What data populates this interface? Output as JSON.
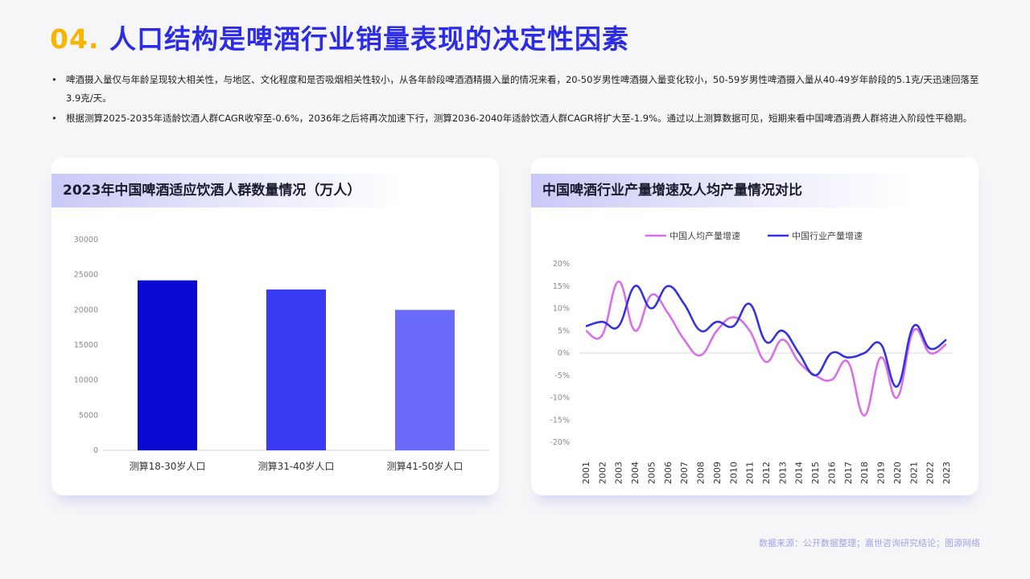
{
  "header": {
    "number": "04.",
    "title": "人口结构是啤酒行业销量表现的决定性因素"
  },
  "bullets": [
    "啤酒摄入量仅与年龄呈现较大相关性，与地区、文化程度和是否吸烟相关性较小，从各年龄段啤酒酒精摄入量的情况来看，20-50岁男性啤酒摄入量变化较小，50-59岁男性啤酒摄入量从40-49岁年龄段的5.1克/天迅速回落至3.9克/天。",
    "根据测算2025-2035年适龄饮酒人群CAGR收窄至-0.6%，2036年之后将再次加速下行，测算2036-2040年适龄饮酒人群CAGR将扩大至-1.9%。通过以上测算数据可见，短期来看中国啤酒消费人群将进入阶段性平稳期。"
  ],
  "source": "数据来源：公开数据整理；嘉世咨询研究结论；图源网络",
  "chart_data": [
    {
      "type": "bar",
      "title": "2023年中国啤酒适应饮酒人群数量情况（万人）",
      "categories": [
        "测算18-30岁人口",
        "测算31-40岁人口",
        "测算41-50岁人口"
      ],
      "values": [
        24200,
        22900,
        20000
      ],
      "colors": [
        "#0a0ad2",
        "#3a3af5",
        "#6a6afa"
      ],
      "ylim": [
        0,
        30000
      ],
      "yticks": [
        "0",
        "5000",
        "10000",
        "15000",
        "20000",
        "25000",
        "30000"
      ],
      "grid": false
    },
    {
      "type": "line",
      "title": "中国啤酒行业产量增速及人均产量情况对比",
      "x": [
        "2001",
        "2002",
        "2003",
        "2004",
        "2005",
        "2006",
        "2007",
        "2008",
        "2009",
        "2010",
        "2011",
        "2012",
        "2013",
        "2014",
        "2015",
        "2016",
        "2017",
        "2018",
        "2019",
        "2020",
        "2021",
        "2022",
        "2023"
      ],
      "ylim": [
        -20,
        20
      ],
      "yticks": [
        "20%",
        "15%",
        "10%",
        "5%",
        "0%",
        "-5%",
        "-10%",
        "-15%",
        "-20%"
      ],
      "legend_position": "top",
      "series": [
        {
          "name": "中国人均产量增速",
          "color": "#d96fe8",
          "values": [
            5,
            4,
            16,
            5,
            13,
            9,
            3,
            -0.5,
            5,
            8,
            5,
            -2,
            3,
            -2,
            -5,
            -6,
            -2,
            -14,
            -1,
            -10,
            5,
            0,
            2
          ]
        },
        {
          "name": "中国行业产量增速",
          "color": "#3333dd",
          "values": [
            6,
            7,
            6,
            15,
            10,
            15,
            11,
            5,
            7,
            6,
            11,
            2.5,
            5,
            0,
            -5,
            0,
            -1,
            0,
            2,
            -7.5,
            6,
            1,
            3
          ]
        }
      ]
    }
  ]
}
